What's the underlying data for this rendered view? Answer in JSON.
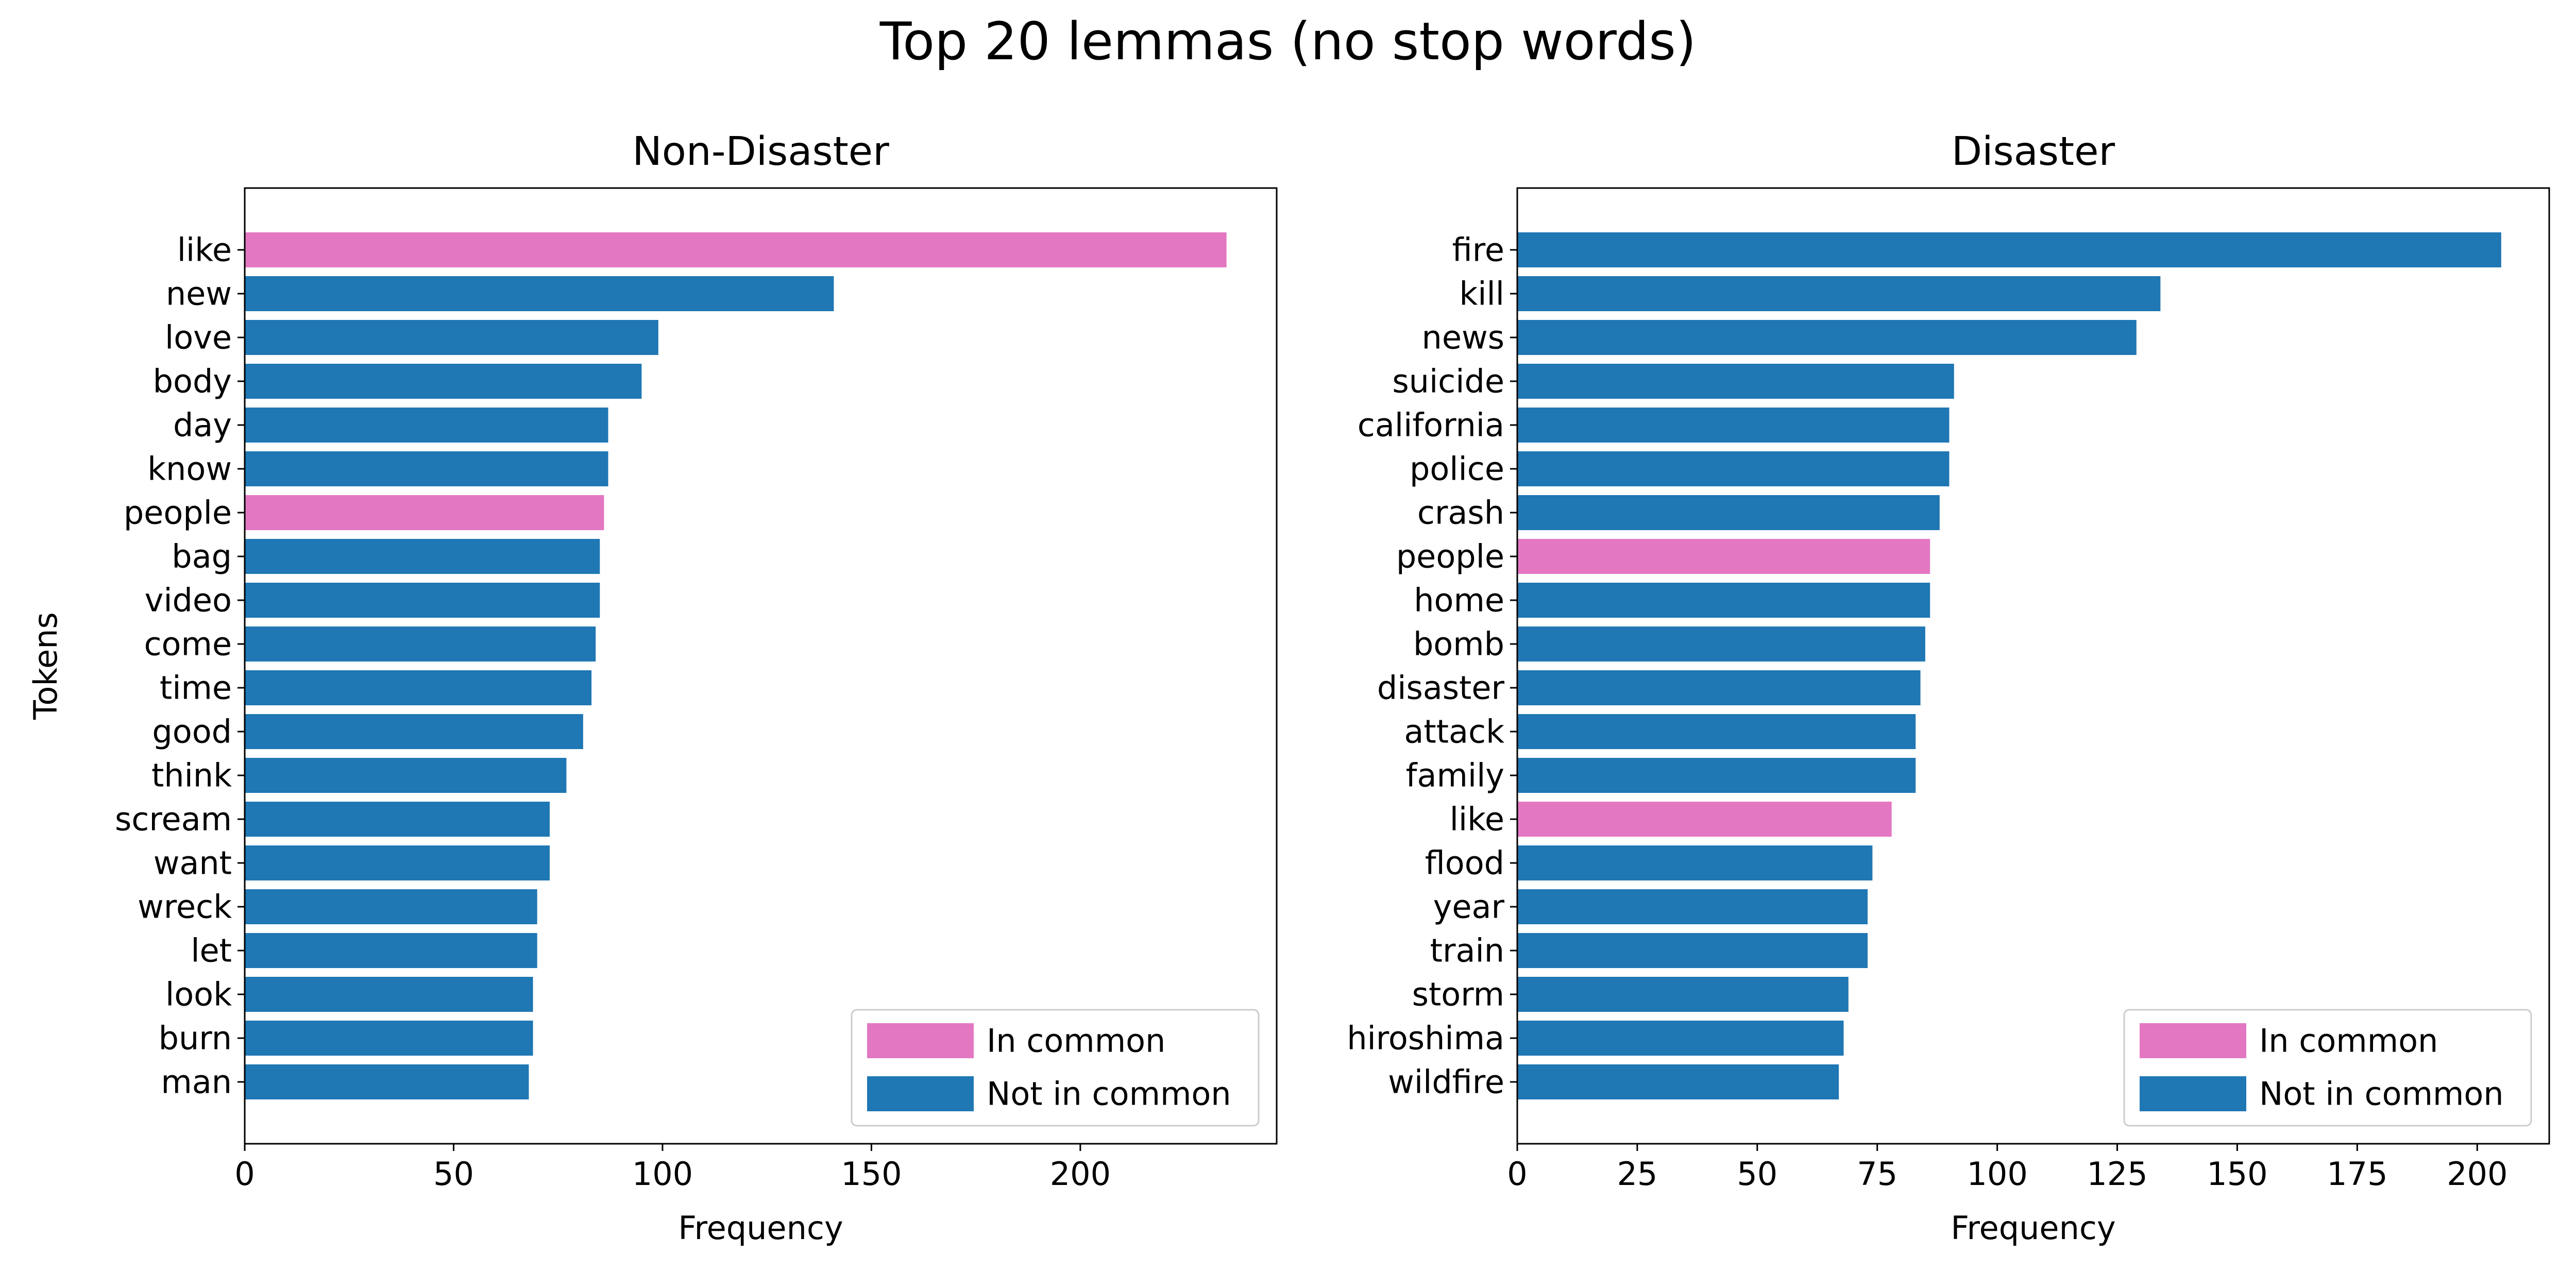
{
  "figure": {
    "title": "Top 20 lemmas (no stop words)"
  },
  "colors": {
    "in_common": "#e377c2",
    "not_in_common": "#1f77b4"
  },
  "chart_data": [
    {
      "type": "bar",
      "orientation": "horizontal",
      "title": "Non-Disaster",
      "xlabel": "Frequency",
      "ylabel": "Tokens",
      "xlim": [
        0,
        247
      ],
      "xticks": [
        0,
        50,
        100,
        150,
        200
      ],
      "grid": false,
      "legend_position": "lower-right",
      "legend": [
        "In common",
        "Not in common"
      ],
      "categories": [
        "like",
        "new",
        "love",
        "body",
        "day",
        "know",
        "people",
        "bag",
        "video",
        "come",
        "time",
        "good",
        "think",
        "scream",
        "want",
        "wreck",
        "let",
        "look",
        "burn",
        "man"
      ],
      "values": [
        235,
        141,
        99,
        95,
        87,
        87,
        86,
        85,
        85,
        84,
        83,
        81,
        77,
        73,
        73,
        70,
        70,
        69,
        69,
        68
      ],
      "in_common": [
        true,
        false,
        false,
        false,
        false,
        false,
        true,
        false,
        false,
        false,
        false,
        false,
        false,
        false,
        false,
        false,
        false,
        false,
        false,
        false
      ]
    },
    {
      "type": "bar",
      "orientation": "horizontal",
      "title": "Disaster",
      "xlabel": "Frequency",
      "ylabel": "",
      "xlim": [
        0,
        215
      ],
      "xticks": [
        0,
        25,
        50,
        75,
        100,
        125,
        150,
        175,
        200
      ],
      "grid": false,
      "legend_position": "lower-right",
      "legend": [
        "In common",
        "Not in common"
      ],
      "categories": [
        "fire",
        "kill",
        "news",
        "suicide",
        "california",
        "police",
        "crash",
        "people",
        "home",
        "bomb",
        "disaster",
        "attack",
        "family",
        "like",
        "flood",
        "year",
        "train",
        "storm",
        "hiroshima",
        "wildfire"
      ],
      "values": [
        205,
        134,
        129,
        91,
        90,
        90,
        88,
        86,
        86,
        85,
        84,
        83,
        83,
        78,
        74,
        73,
        73,
        69,
        68,
        67
      ],
      "in_common": [
        false,
        false,
        false,
        false,
        false,
        false,
        false,
        true,
        false,
        false,
        false,
        false,
        false,
        true,
        false,
        false,
        false,
        false,
        false,
        false
      ]
    }
  ]
}
